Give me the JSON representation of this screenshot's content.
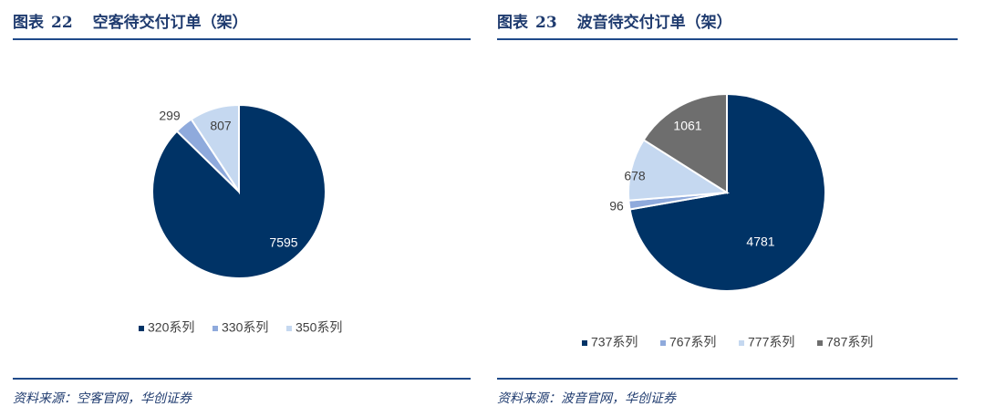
{
  "figures": [
    {
      "label": "图表",
      "number": "22",
      "title": "空客待交付订单（架）",
      "source": "资料来源：空客官网，华创证券"
    },
    {
      "label": "图表",
      "number": "23",
      "title": "波音待交付订单（架）",
      "source": "资料来源：波音官网，华创证券"
    }
  ],
  "colors": {
    "title": "#1f3b6f",
    "rule": "#1f4a8a"
  },
  "chart_data": [
    {
      "type": "pie",
      "title": "空客待交付订单（架）",
      "categories": [
        "320系列",
        "330系列",
        "350系列"
      ],
      "values": [
        7595,
        299,
        807
      ],
      "data_labels": [
        "7595",
        "299",
        "807"
      ],
      "colors": [
        "#003366",
        "#8faadc",
        "#c5d8f0"
      ],
      "label_colors": [
        "#ffffff",
        "#404040",
        "#404040"
      ],
      "legend": "bottom"
    },
    {
      "type": "pie",
      "title": "波音待交付订单（架）",
      "categories": [
        "737系列",
        "767系列",
        "777系列",
        "787系列"
      ],
      "values": [
        4781,
        96,
        678,
        1061
      ],
      "data_labels": [
        "4781",
        "96",
        "678",
        "1061"
      ],
      "colors": [
        "#003366",
        "#8faadc",
        "#c5d8f0",
        "#6e6e6e"
      ],
      "label_colors": [
        "#ffffff",
        "#404040",
        "#404040",
        "#ffffff"
      ],
      "legend": "bottom"
    }
  ]
}
